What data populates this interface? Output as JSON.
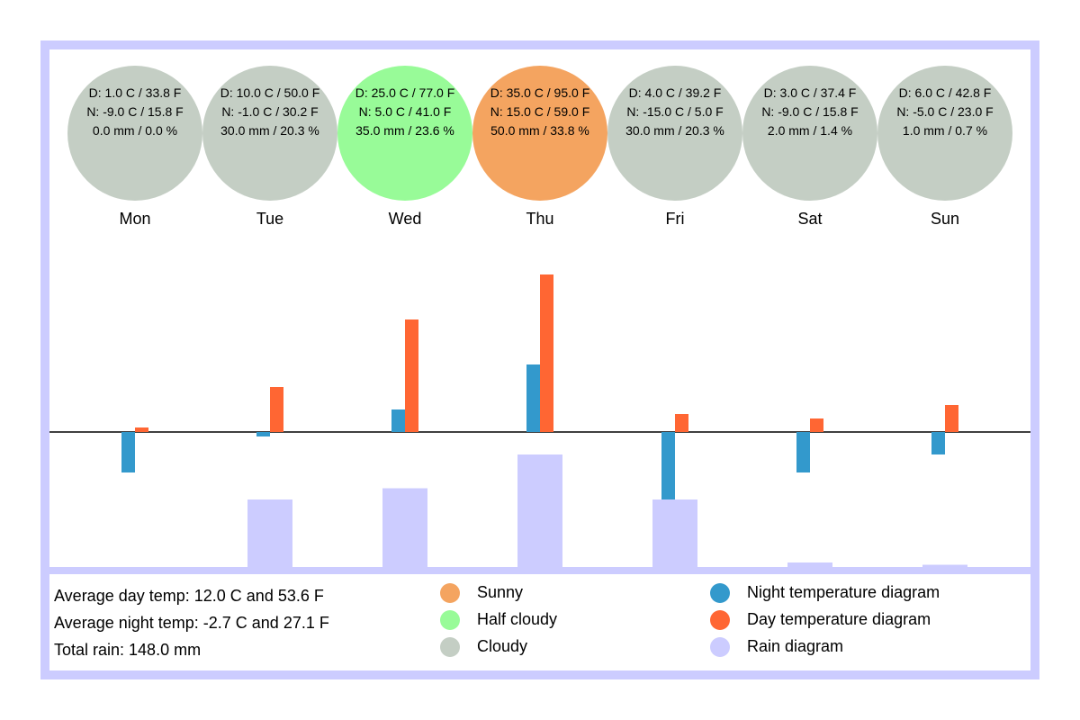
{
  "colors": {
    "frame": "#ccccff",
    "sunny": "#f4a460",
    "half_cloudy": "#98fb98",
    "cloudy": "#c4cec4",
    "night_bar": "#3399cc",
    "day_bar": "#ff6633",
    "rain_bar": "#ccccff",
    "baseline": "#000000"
  },
  "chart_data": {
    "type": "bar",
    "categories": [
      "Mon",
      "Tue",
      "Wed",
      "Thu",
      "Fri",
      "Sat",
      "Sun"
    ],
    "days": [
      {
        "name": "Mon",
        "weather": "cloudy",
        "day_c": 1.0,
        "day_f": 33.8,
        "night_c": -9.0,
        "night_f": 15.8,
        "rain_mm": 0.0,
        "rain_pct": 0.0,
        "line1": "D: 1.0 C / 33.8 F",
        "line2": "N: -9.0 C / 15.8 F",
        "line3": "0.0 mm / 0.0 %"
      },
      {
        "name": "Tue",
        "weather": "cloudy",
        "day_c": 10.0,
        "day_f": 50.0,
        "night_c": -1.0,
        "night_f": 30.2,
        "rain_mm": 30.0,
        "rain_pct": 20.3,
        "line1": "D: 10.0 C / 50.0 F",
        "line2": "N: -1.0 C / 30.2 F",
        "line3": "30.0 mm / 20.3 %"
      },
      {
        "name": "Wed",
        "weather": "half_cloudy",
        "day_c": 25.0,
        "day_f": 77.0,
        "night_c": 5.0,
        "night_f": 41.0,
        "rain_mm": 35.0,
        "rain_pct": 23.6,
        "line1": "D: 25.0 C / 77.0 F",
        "line2": "N: 5.0 C / 41.0 F",
        "line3": "35.0 mm / 23.6 %"
      },
      {
        "name": "Thu",
        "weather": "sunny",
        "day_c": 35.0,
        "day_f": 95.0,
        "night_c": 15.0,
        "night_f": 59.0,
        "rain_mm": 50.0,
        "rain_pct": 33.8,
        "line1": "D: 35.0 C / 95.0 F",
        "line2": "N: 15.0 C / 59.0 F",
        "line3": "50.0 mm / 33.8 %"
      },
      {
        "name": "Fri",
        "weather": "cloudy",
        "day_c": 4.0,
        "day_f": 39.2,
        "night_c": -15.0,
        "night_f": 5.0,
        "rain_mm": 30.0,
        "rain_pct": 20.3,
        "line1": "D: 4.0 C / 39.2 F",
        "line2": "N: -15.0 C / 5.0 F",
        "line3": "30.0 mm / 20.3 %"
      },
      {
        "name": "Sat",
        "weather": "cloudy",
        "day_c": 3.0,
        "day_f": 37.4,
        "night_c": -9.0,
        "night_f": 15.8,
        "rain_mm": 2.0,
        "rain_pct": 1.4,
        "line1": "D: 3.0 C / 37.4 F",
        "line2": "N: -9.0 C / 15.8 F",
        "line3": "2.0 mm / 1.4 %"
      },
      {
        "name": "Sun",
        "weather": "cloudy",
        "day_c": 6.0,
        "day_f": 42.8,
        "night_c": -5.0,
        "night_f": 23.0,
        "rain_mm": 1.0,
        "rain_pct": 0.7,
        "line1": "D: 6.0 C / 42.8 F",
        "line2": "N: -5.0 C / 23.0 F",
        "line3": "1.0 mm / 0.7 %"
      }
    ],
    "series": [
      {
        "name": "Night temperature diagram",
        "values": [
          -9.0,
          -1.0,
          5.0,
          15.0,
          -15.0,
          -9.0,
          -5.0
        ]
      },
      {
        "name": "Day temperature diagram",
        "values": [
          1.0,
          10.0,
          25.0,
          35.0,
          4.0,
          3.0,
          6.0
        ]
      },
      {
        "name": "Rain diagram",
        "values": [
          0.0,
          30.0,
          35.0,
          50.0,
          30.0,
          2.0,
          1.0
        ]
      }
    ],
    "legend_position": "bottom",
    "grid": false
  },
  "summary": {
    "avg_day": "Average day temp: 12.0 C and 53.6 F",
    "avg_night": "Average night temp: -2.7 C and 27.1 F",
    "total_rain": "Total rain: 148.0 mm"
  },
  "legend": [
    {
      "label": "Sunny",
      "color_key": "sunny"
    },
    {
      "label": "Half cloudy",
      "color_key": "half_cloudy"
    },
    {
      "label": "Cloudy",
      "color_key": "cloudy"
    },
    {
      "label": "Night temperature diagram",
      "color_key": "night_bar"
    },
    {
      "label": "Day temperature diagram",
      "color_key": "day_bar"
    },
    {
      "label": "Rain diagram",
      "color_key": "rain_bar"
    }
  ]
}
